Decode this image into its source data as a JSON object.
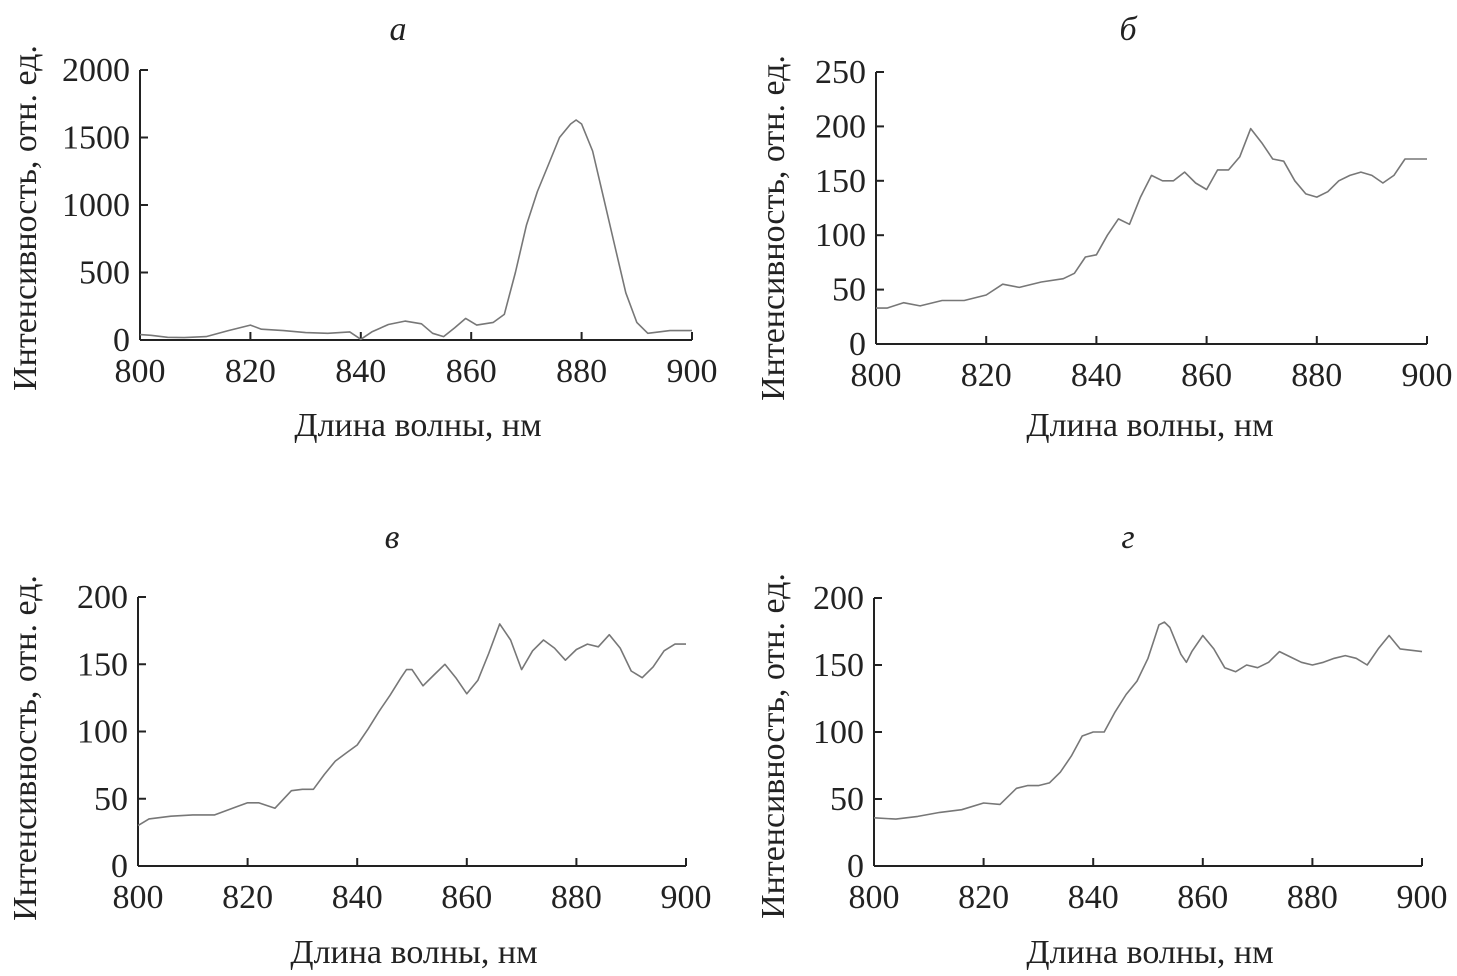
{
  "chart_data": [
    {
      "type": "line",
      "title": "а",
      "xlabel": "Длина волны, нм",
      "ylabel": "Интенсивность, отн. ед.",
      "xlim": [
        800,
        900
      ],
      "ylim": [
        0,
        2000
      ],
      "xticks": [
        "800",
        "820",
        "840",
        "860",
        "880",
        "900"
      ],
      "yticks": [
        "0",
        "500",
        "1000",
        "1500",
        "2000"
      ],
      "series": [
        {
          "x": [
            800,
            802,
            805,
            808,
            812,
            816,
            820,
            822,
            826,
            830,
            834,
            838,
            840,
            842,
            845,
            848,
            851,
            853,
            855,
            857,
            859,
            861,
            864,
            866,
            868,
            870,
            872,
            874,
            876,
            878,
            879,
            880,
            882,
            884,
            886,
            888,
            890,
            892,
            894,
            896,
            900
          ],
          "y": [
            40,
            35,
            20,
            18,
            25,
            70,
            110,
            80,
            70,
            55,
            50,
            60,
            5,
            60,
            115,
            140,
            120,
            50,
            25,
            90,
            160,
            110,
            130,
            190,
            500,
            850,
            1100,
            1300,
            1500,
            1600,
            1630,
            1600,
            1400,
            1050,
            700,
            350,
            130,
            50,
            60,
            70,
            70
          ]
        }
      ]
    },
    {
      "type": "line",
      "title": "б",
      "xlabel": "Длина волны, нм",
      "ylabel": "Интенсивность, отн. ед.",
      "xlim": [
        800,
        900
      ],
      "ylim": [
        0,
        250
      ],
      "xticks": [
        "800",
        "820",
        "840",
        "860",
        "880",
        "900"
      ],
      "yticks": [
        "0",
        "50",
        "100",
        "150",
        "200",
        "250"
      ],
      "series": [
        {
          "x": [
            800,
            802,
            805,
            808,
            812,
            816,
            820,
            823,
            826,
            830,
            834,
            836,
            838,
            840,
            842,
            844,
            846,
            848,
            850,
            852,
            854,
            856,
            858,
            860,
            862,
            864,
            866,
            868,
            870,
            872,
            874,
            876,
            878,
            880,
            882,
            884,
            886,
            888,
            890,
            892,
            894,
            896,
            900
          ],
          "y": [
            33,
            33,
            38,
            35,
            40,
            40,
            45,
            55,
            52,
            57,
            60,
            65,
            80,
            82,
            100,
            115,
            110,
            135,
            155,
            150,
            150,
            158,
            148,
            142,
            160,
            160,
            172,
            198,
            185,
            170,
            168,
            150,
            138,
            135,
            140,
            150,
            155,
            158,
            155,
            148,
            155,
            170,
            170
          ]
        }
      ]
    },
    {
      "type": "line",
      "title": "в",
      "xlabel": "Длина волны, нм",
      "ylabel": "Интенсивность, отн. ед.",
      "xlim": [
        800,
        900
      ],
      "ylim": [
        0,
        200
      ],
      "xticks": [
        "800",
        "820",
        "840",
        "860",
        "880",
        "900"
      ],
      "yticks": [
        "0",
        "50",
        "100",
        "150",
        "200"
      ],
      "series": [
        {
          "x": [
            800,
            802,
            806,
            810,
            814,
            818,
            820,
            822,
            825,
            828,
            830,
            832,
            834,
            836,
            838,
            840,
            842,
            844,
            846,
            848,
            849,
            850,
            852,
            854,
            856,
            858,
            860,
            862,
            864,
            866,
            868,
            870,
            872,
            874,
            876,
            878,
            880,
            882,
            884,
            886,
            888,
            890,
            892,
            894,
            896,
            898,
            900
          ],
          "y": [
            30,
            35,
            37,
            38,
            38,
            44,
            47,
            47,
            43,
            56,
            57,
            57,
            68,
            78,
            84,
            90,
            102,
            115,
            127,
            140,
            146,
            146,
            134,
            142,
            150,
            140,
            128,
            138,
            158,
            180,
            168,
            146,
            160,
            168,
            162,
            153,
            161,
            165,
            163,
            172,
            162,
            145,
            140,
            148,
            160,
            165,
            165
          ]
        }
      ]
    },
    {
      "type": "line",
      "title": "г",
      "xlabel": "Длина волны, нм",
      "ylabel": "Интенсивность, отн. ед.",
      "xlim": [
        800,
        900
      ],
      "ylim": [
        0,
        200
      ],
      "xticks": [
        "800",
        "820",
        "840",
        "860",
        "880",
        "900"
      ],
      "yticks": [
        "0",
        "50",
        "100",
        "150",
        "200"
      ],
      "series": [
        {
          "x": [
            800,
            804,
            808,
            812,
            816,
            820,
            823,
            826,
            828,
            830,
            832,
            834,
            836,
            838,
            840,
            842,
            844,
            846,
            848,
            850,
            852,
            853,
            854,
            856,
            857,
            858,
            860,
            862,
            864,
            866,
            868,
            870,
            872,
            874,
            876,
            878,
            880,
            882,
            884,
            886,
            888,
            890,
            892,
            894,
            896,
            900
          ],
          "y": [
            36,
            35,
            37,
            40,
            42,
            47,
            46,
            58,
            60,
            60,
            62,
            70,
            82,
            97,
            100,
            100,
            115,
            128,
            138,
            155,
            180,
            182,
            178,
            158,
            152,
            160,
            172,
            162,
            148,
            145,
            150,
            148,
            152,
            160,
            156,
            152,
            150,
            152,
            155,
            157,
            155,
            150,
            162,
            172,
            162,
            160
          ]
        }
      ]
    }
  ]
}
